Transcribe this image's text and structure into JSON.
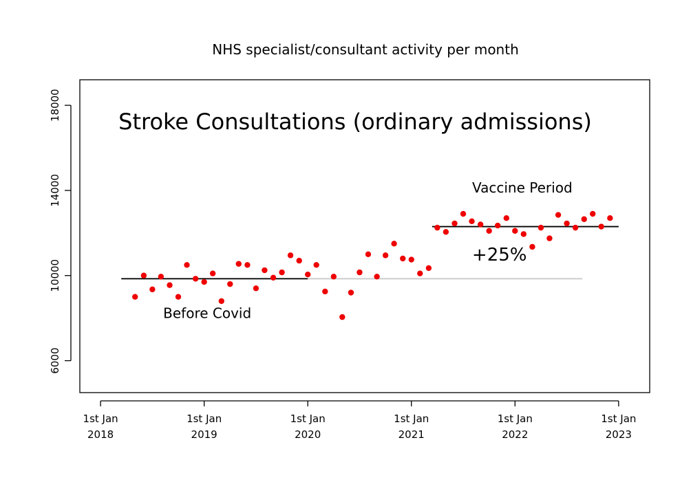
{
  "chart_data": {
    "type": "scatter",
    "title": "NHS specialist/consultant activity per month",
    "subtitle": "Stroke Consultations (ordinary admissions)",
    "xlabel": "",
    "ylabel": "",
    "xlim": [
      2017.8,
      2023.3
    ],
    "ylim": [
      4500,
      19200
    ],
    "y_ticks": [
      6000,
      10000,
      14000,
      18000
    ],
    "y_tick_labels": [
      "6000",
      "10000",
      "14000",
      "18000"
    ],
    "x_ticks": [
      2018,
      2019,
      2020,
      2021,
      2022,
      2023
    ],
    "x_tick_labels": [
      [
        "1st Jan",
        "2018"
      ],
      [
        "1st Jan",
        "2019"
      ],
      [
        "1st Jan",
        "2020"
      ],
      [
        "1st Jan",
        "2021"
      ],
      [
        "1st Jan",
        "2022"
      ],
      [
        "1st Jan",
        "2023"
      ]
    ],
    "point_color": "#ee0000",
    "series": [
      {
        "name": "monthly activity",
        "x": [
          2018.333,
          2018.417,
          2018.5,
          2018.583,
          2018.667,
          2018.75,
          2018.833,
          2018.917,
          2019.0,
          2019.083,
          2019.167,
          2019.25,
          2019.333,
          2019.417,
          2019.5,
          2019.583,
          2019.667,
          2019.75,
          2019.833,
          2019.917,
          2020.0,
          2020.083,
          2020.167,
          2020.25,
          2020.333,
          2020.417,
          2020.5,
          2020.583,
          2020.667,
          2020.75,
          2020.833,
          2020.917,
          2021.0,
          2021.083,
          2021.167,
          2021.25,
          2021.333,
          2021.417,
          2021.5,
          2021.583,
          2021.667,
          2021.75,
          2021.833,
          2021.917,
          2022.0,
          2022.083,
          2022.167,
          2022.25,
          2022.333,
          2022.417,
          2022.5,
          2022.583,
          2022.667,
          2022.75,
          2022.833,
          2022.917
        ],
        "values": [
          9000,
          10000,
          9350,
          9950,
          9550,
          9000,
          10500,
          9850,
          9700,
          10100,
          8800,
          9600,
          10550,
          10500,
          9400,
          10250,
          9900,
          10150,
          10950,
          10700,
          10050,
          10500,
          9250,
          9950,
          8050,
          9200,
          10150,
          11000,
          9950,
          10950,
          11500,
          10800,
          10750,
          10100,
          10350,
          12250,
          12050,
          12450,
          12900,
          12550,
          12400,
          12100,
          12350,
          12700,
          12100,
          11950,
          11350,
          12250,
          11750,
          12850,
          12450,
          12250,
          12650,
          12900,
          12300,
          12700
        ]
      }
    ],
    "reference_lines": [
      {
        "name": "before-covid-mean",
        "x": [
          2018.2,
          2020.0
        ],
        "y": 9850,
        "color": "#000000"
      },
      {
        "name": "vaccine-period-mean",
        "x": [
          2021.2,
          2023.0
        ],
        "y": 12300,
        "color": "#000000"
      },
      {
        "name": "baseline-extension",
        "x": [
          2018.2,
          2022.65
        ],
        "y": 9850,
        "color": "#cccccc"
      }
    ],
    "annotations": [
      {
        "name": "before-covid-label",
        "text": "Before Covid",
        "x": 2019.03,
        "y": 8000
      },
      {
        "name": "vaccine-period-label",
        "text": "Vaccine Period",
        "x": 2022.07,
        "y": 13900
      },
      {
        "name": "percent-change-label",
        "text": "+25%",
        "x": 2021.85,
        "y": 10700
      }
    ]
  }
}
